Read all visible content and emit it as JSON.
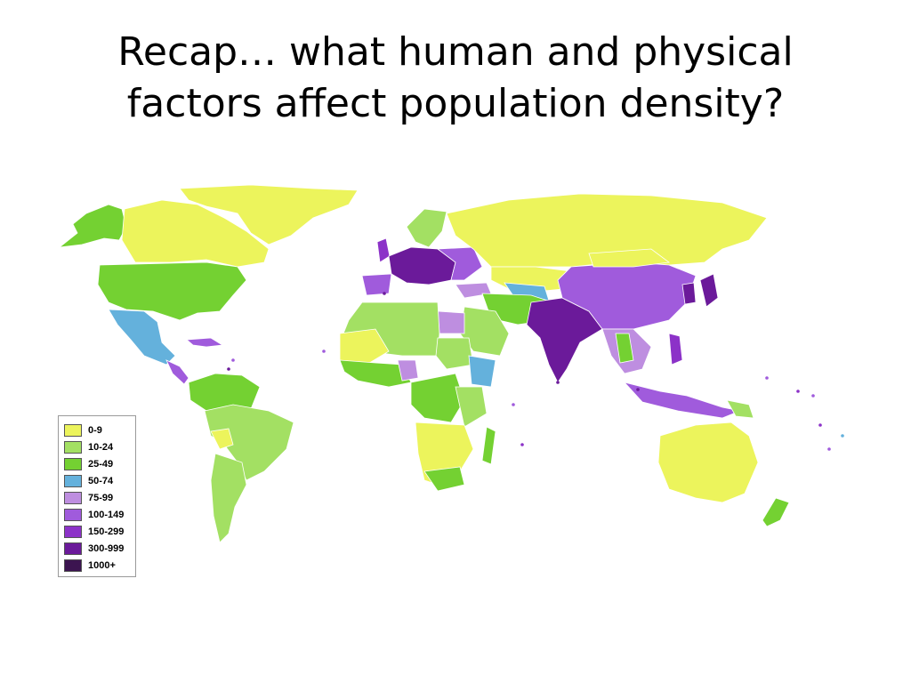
{
  "slide": {
    "title_line1": "Recap… what human and physical",
    "title_line2": "factors affect population density?"
  },
  "legend": {
    "items": [
      {
        "label": "0-9",
        "color": "#ecf45c"
      },
      {
        "label": "10-24",
        "color": "#a3e063"
      },
      {
        "label": "25-49",
        "color": "#74d132"
      },
      {
        "label": "50-74",
        "color": "#64b1dc"
      },
      {
        "label": "75-99",
        "color": "#be8ee0"
      },
      {
        "label": "100-149",
        "color": "#a05bdc"
      },
      {
        "label": "150-299",
        "color": "#8c32c8"
      },
      {
        "label": "300-999",
        "color": "#6b1a9a"
      },
      {
        "label": "1000+",
        "color": "#3c1450"
      }
    ]
  }
}
